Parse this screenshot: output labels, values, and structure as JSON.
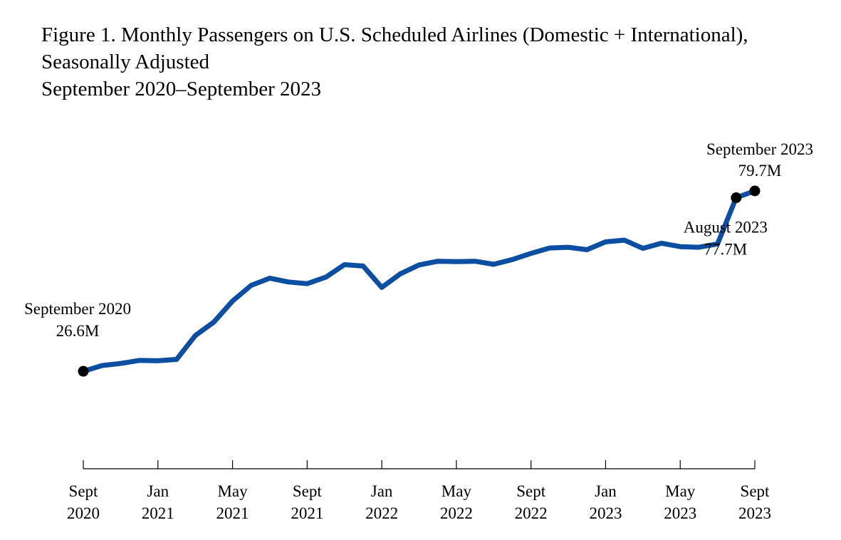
{
  "figure": {
    "title_lines": [
      "Figure 1. Monthly Passengers on U.S. Scheduled Airlines (Domestic + International),",
      "Seasonally Adjusted",
      "September 2020–September 2023"
    ]
  },
  "chart_data": {
    "type": "line",
    "title": "Figure 1. Monthly Passengers on U.S. Scheduled Airlines (Domestic + International), Seasonally Adjusted, September 2020–September 2023",
    "xlabel": "",
    "ylabel": "",
    "unit": "Million passengers",
    "ylim": [
      0,
      90
    ],
    "grid": false,
    "line_color": "#0b4ea2",
    "marker_color": "#000000",
    "months": [
      "Sep 2020",
      "Oct 2020",
      "Nov 2020",
      "Dec 2020",
      "Jan 2021",
      "Feb 2021",
      "Mar 2021",
      "Apr 2021",
      "May 2021",
      "Jun 2021",
      "Jul 2021",
      "Aug 2021",
      "Sep 2021",
      "Oct 2021",
      "Nov 2021",
      "Dec 2021",
      "Jan 2022",
      "Feb 2022",
      "Mar 2022",
      "Apr 2022",
      "May 2022",
      "Jun 2022",
      "Jul 2022",
      "Aug 2022",
      "Sep 2022",
      "Oct 2022",
      "Nov 2022",
      "Dec 2022",
      "Jan 2023",
      "Feb 2023",
      "Mar 2023",
      "Apr 2023",
      "May 2023",
      "Jun 2023",
      "Jul 2023",
      "Aug 2023",
      "Sep 2023"
    ],
    "series": [
      {
        "name": "Monthly Passengers (SA)",
        "values": [
          26.6,
          28.3,
          28.9,
          29.8,
          29.7,
          30.1,
          37.1,
          41.1,
          47.3,
          51.9,
          54.0,
          52.9,
          52.4,
          54.3,
          58.0,
          57.6,
          51.3,
          55.3,
          57.9,
          59.0,
          58.9,
          59.0,
          58.1,
          59.5,
          61.3,
          62.9,
          63.1,
          62.4,
          64.7,
          65.2,
          62.8,
          64.3,
          63.3,
          63.1,
          64.1,
          77.7,
          79.7
        ]
      }
    ],
    "tick_labels": [
      {
        "index": 0,
        "lines": [
          "Sept",
          "2020"
        ]
      },
      {
        "index": 4,
        "lines": [
          "Jan",
          "2021"
        ]
      },
      {
        "index": 8,
        "lines": [
          "May",
          "2021"
        ]
      },
      {
        "index": 12,
        "lines": [
          "Sept",
          "2021"
        ]
      },
      {
        "index": 16,
        "lines": [
          "Jan",
          "2022"
        ]
      },
      {
        "index": 20,
        "lines": [
          "May",
          "2022"
        ]
      },
      {
        "index": 24,
        "lines": [
          "Sept",
          "2022"
        ]
      },
      {
        "index": 28,
        "lines": [
          "Jan",
          "2023"
        ]
      },
      {
        "index": 32,
        "lines": [
          "May",
          "2023"
        ]
      },
      {
        "index": 36,
        "lines": [
          "Sept",
          "2023"
        ]
      }
    ],
    "annotations": [
      {
        "id": "start",
        "index": 0,
        "lines": [
          "September 2020",
          "26.6M"
        ]
      },
      {
        "id": "aug",
        "index": 35,
        "lines": [
          "August 2023",
          "77.7M"
        ]
      },
      {
        "id": "end",
        "index": 36,
        "lines": [
          "September 2023",
          "79.7M"
        ]
      }
    ],
    "marked_points": [
      0,
      35,
      36
    ]
  }
}
